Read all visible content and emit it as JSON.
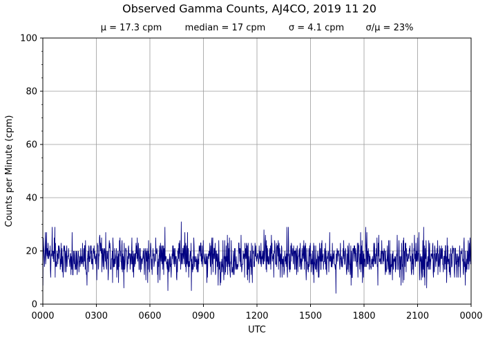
{
  "chart_data": {
    "type": "line",
    "title": "Observed Gamma Counts, AJ4CO, 2019 11 20",
    "stats": {
      "mean": "μ = 17.3 cpm",
      "median": "median = 17 cpm",
      "sigma": "σ = 4.1 cpm",
      "ratio": "σ/μ = 23%"
    },
    "xlabel": "UTC",
    "ylabel": "Counts per Minute (cpm)",
    "xlim": [
      "0000",
      "0000"
    ],
    "ylim": [
      0,
      100
    ],
    "x_ticks": [
      "0000",
      "0300",
      "0600",
      "0900",
      "1200",
      "1500",
      "1800",
      "2100",
      "0000"
    ],
    "y_ticks": [
      "0",
      "20",
      "40",
      "60",
      "80",
      "100"
    ],
    "grid": true,
    "series": [
      {
        "color": "#000080",
        "sampling": "1 sample per minute over 24 hours",
        "mean": 17.3,
        "median": 17,
        "std": 4.1,
        "notable_values": [
          {
            "time": "0745",
            "value": 31
          },
          {
            "time": "0040",
            "value": 29
          },
          {
            "time": "0650",
            "value": 29
          },
          {
            "time": "1345",
            "value": 29
          },
          {
            "time": "1805",
            "value": 29
          },
          {
            "time": "2120",
            "value": 29
          },
          {
            "time": "0700",
            "value": 5
          },
          {
            "time": "1625",
            "value": 4
          },
          {
            "time": "0000",
            "value": 7
          },
          {
            "time": "2130",
            "value": 6
          },
          {
            "time": "2340",
            "value": 7
          }
        ]
      }
    ]
  }
}
